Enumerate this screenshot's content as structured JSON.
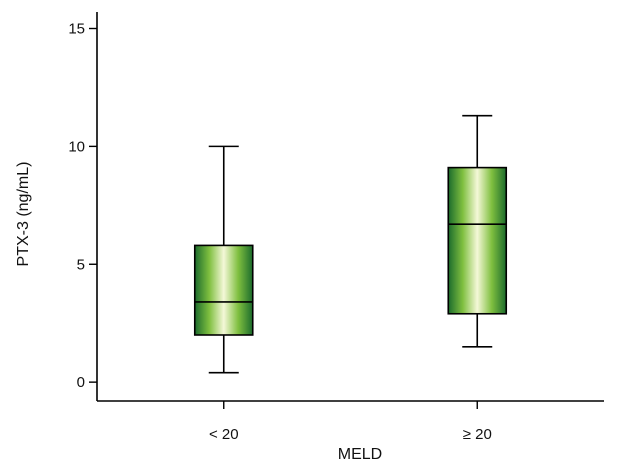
{
  "chart_data": {
    "type": "box",
    "title": "",
    "xlabel": "MELD",
    "ylabel": "PTX-3 (ng/mL)",
    "ylim": [
      -0.8,
      15.7
    ],
    "yticks": [
      0,
      5,
      10,
      15
    ],
    "grid": false,
    "categories": [
      "< 20",
      "≥ 20"
    ],
    "boxes": [
      {
        "category": "< 20",
        "whisker_low": 0.4,
        "q1": 2.0,
        "median": 3.4,
        "q3": 5.8,
        "whisker_high": 10.0
      },
      {
        "category": "≥ 20",
        "whisker_low": 1.5,
        "q1": 2.9,
        "median": 6.7,
        "q3": 9.1,
        "whisker_high": 11.3
      }
    ],
    "colors": {
      "box_dark": "#1b6b2c",
      "box_mid": "#7fbf3f",
      "box_light": "#f4f8d8",
      "axis": "#000000"
    }
  }
}
